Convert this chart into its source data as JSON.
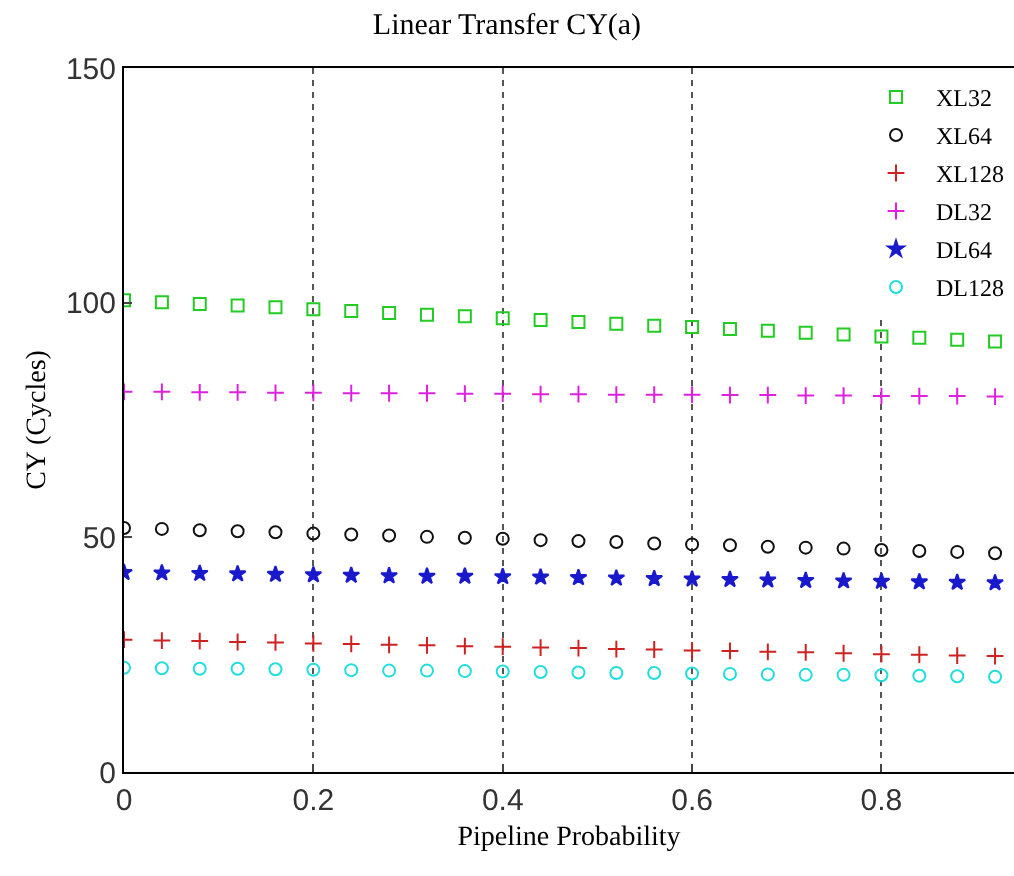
{
  "chart_data": {
    "type": "scatter",
    "title": "Linear Transfer CY(a)",
    "xlabel": "Pipeline Probability",
    "ylabel": "CY (Cycles)",
    "x": [
      0,
      0.04,
      0.08,
      0.12,
      0.16,
      0.2,
      0.24,
      0.28,
      0.32,
      0.36,
      0.4,
      0.44,
      0.48,
      0.52,
      0.56,
      0.6,
      0.64,
      0.68,
      0.72,
      0.76,
      0.8,
      0.84,
      0.88,
      0.92
    ],
    "xlim": [
      0,
      0.94
    ],
    "xticks": [
      0,
      0.2,
      0.4,
      0.6,
      0.8
    ],
    "ylim": [
      0,
      150
    ],
    "yticks": [
      0,
      50,
      100,
      150
    ],
    "grid": "x",
    "legend": "top right",
    "series": [
      {
        "name": "XL32",
        "color": "#22cc22",
        "marker": "square",
        "values": [
          100.5,
          100.1,
          99.7,
          99.4,
          99.0,
          98.6,
          98.2,
          97.8,
          97.4,
          97.1,
          96.7,
          96.3,
          95.9,
          95.5,
          95.1,
          94.8,
          94.4,
          94.0,
          93.6,
          93.2,
          92.8,
          92.5,
          92.1,
          91.7
        ]
      },
      {
        "name": "XL64",
        "color": "#111111",
        "marker": "circle",
        "values": [
          52.0,
          51.8,
          51.5,
          51.3,
          51.1,
          50.8,
          50.6,
          50.4,
          50.1,
          49.9,
          49.7,
          49.4,
          49.2,
          49.0,
          48.7,
          48.5,
          48.3,
          48.0,
          47.8,
          47.6,
          47.3,
          47.1,
          46.9,
          46.6
        ]
      },
      {
        "name": "XL128",
        "color": "#cc2222",
        "marker": "cross",
        "values": [
          28.2,
          28.0,
          27.9,
          27.7,
          27.6,
          27.4,
          27.3,
          27.1,
          27.0,
          26.8,
          26.7,
          26.5,
          26.4,
          26.2,
          26.1,
          25.9,
          25.8,
          25.6,
          25.5,
          25.3,
          25.1,
          25.0,
          24.8,
          24.7
        ]
      },
      {
        "name": "DL32",
        "color": "#dd22dd",
        "marker": "cross",
        "values": [
          81.0,
          81.0,
          80.9,
          80.9,
          80.8,
          80.8,
          80.7,
          80.7,
          80.7,
          80.6,
          80.6,
          80.5,
          80.5,
          80.4,
          80.4,
          80.4,
          80.3,
          80.3,
          80.2,
          80.2,
          80.1,
          80.1,
          80.1,
          80.0
        ]
      },
      {
        "name": "DL64",
        "color": "#1a1acc",
        "marker": "star",
        "values": [
          42.5,
          42.4,
          42.3,
          42.2,
          42.1,
          42.0,
          41.9,
          41.8,
          41.7,
          41.7,
          41.6,
          41.5,
          41.4,
          41.3,
          41.2,
          41.1,
          41.0,
          40.9,
          40.8,
          40.7,
          40.6,
          40.5,
          40.4,
          40.3
        ]
      },
      {
        "name": "DL128",
        "color": "#22dddd",
        "marker": "circle",
        "values": [
          22.2,
          22.1,
          22.0,
          22.0,
          21.9,
          21.8,
          21.7,
          21.6,
          21.6,
          21.5,
          21.4,
          21.3,
          21.2,
          21.1,
          21.1,
          21.0,
          20.9,
          20.8,
          20.7,
          20.7,
          20.6,
          20.5,
          20.4,
          20.3
        ]
      }
    ]
  }
}
